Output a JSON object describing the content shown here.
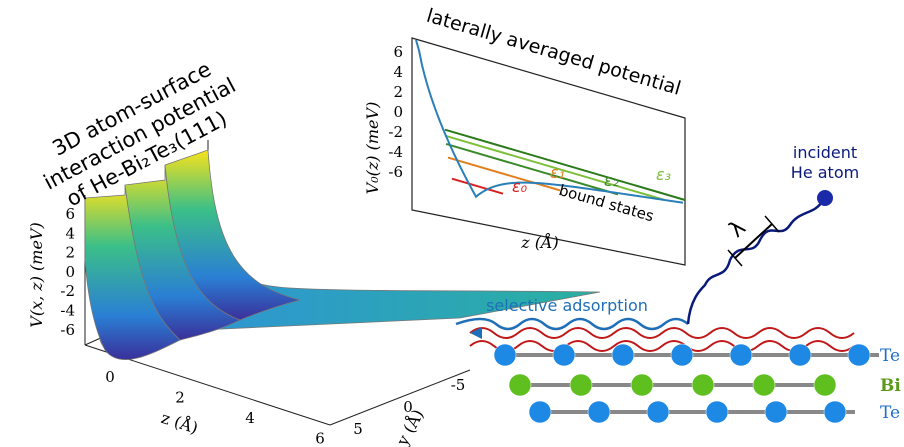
{
  "plot3d": {
    "title": [
      "3D atom-surface",
      "interaction potential",
      "of He-Bi₂Te₃(111)"
    ],
    "v_label": "V(x, z) (meV)",
    "v_ticks": [
      "6",
      "4",
      "2",
      "0",
      "-2",
      "-4",
      "-6"
    ],
    "z_label": "z (Å)",
    "z_ticks": [
      "0",
      "2",
      "4",
      "6"
    ],
    "y_label": "y (Å)",
    "y_ticks": [
      "-5",
      "0",
      "5"
    ]
  },
  "inset": {
    "title": "laterally averaged potential",
    "v_label": "V₀(z) (meV)",
    "v_ticks": [
      "6",
      "4",
      "2",
      "0",
      "-2",
      "-4",
      "-6"
    ],
    "z_label": "z (Å)",
    "levels": [
      "ε₀",
      "ε₁",
      "ε₂",
      "ε₃"
    ],
    "note": "bound states"
  },
  "scheme": {
    "incident": [
      "incident",
      "He atom"
    ],
    "wavelength": "λ",
    "adsorption": "selective adsorption",
    "layers": [
      "Te",
      "Bi",
      "Te"
    ]
  }
}
